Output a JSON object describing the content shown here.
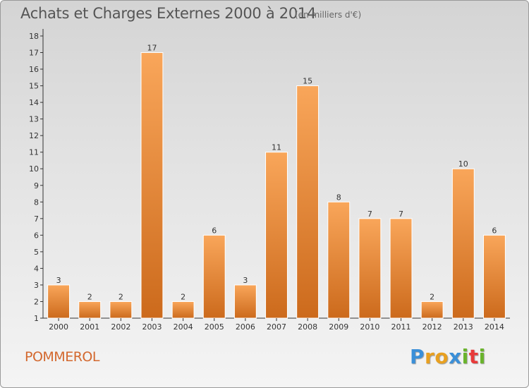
{
  "chart_data": {
    "type": "bar",
    "title": "Achats et Charges Externes 2000 à 2014",
    "subtitle": "(en milliers d'€)",
    "categories": [
      "2000",
      "2001",
      "2002",
      "2003",
      "2004",
      "2005",
      "2006",
      "2007",
      "2008",
      "2009",
      "2010",
      "2011",
      "2012",
      "2013",
      "2014"
    ],
    "values": [
      3,
      2,
      2,
      17,
      2,
      6,
      3,
      11,
      15,
      8,
      7,
      7,
      2,
      10,
      6
    ],
    "ylim": [
      1,
      18
    ],
    "yticks": [
      1,
      2,
      3,
      4,
      5,
      6,
      7,
      8,
      9,
      10,
      11,
      12,
      13,
      14,
      15,
      16,
      17,
      18
    ],
    "xlabel": "",
    "ylabel": "",
    "grid": false,
    "bar_color_light": "#f9a65a",
    "bar_color_dark": "#cc6a1c"
  },
  "commune": "POMMEROL",
  "logo": {
    "letters": [
      "P",
      "r",
      "o",
      "x",
      "i",
      "t",
      "i"
    ],
    "colors": [
      "#3a8fd8",
      "#e8a020",
      "#e8a020",
      "#3a8fd8",
      "#6ab42c",
      "#e83a3a",
      "#6ab42c"
    ]
  }
}
